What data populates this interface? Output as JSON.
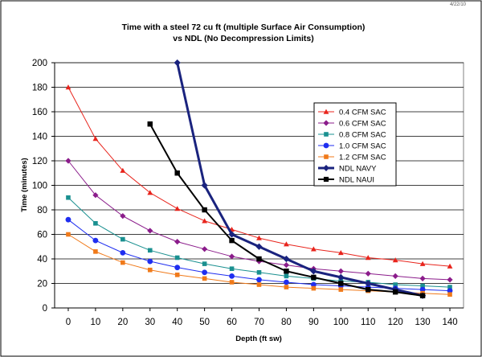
{
  "corner_note": "4/22/10",
  "chart_data": {
    "type": "line",
    "title": "Time with a steel 72 cu ft (multiple Surface Air Consumption)",
    "subtitle": "vs NDL (No Decompression Limits)",
    "xlabel": "Depth (ft sw)",
    "ylabel": "Time (minutes)",
    "xlim": [
      -5,
      145
    ],
    "ylim": [
      0,
      200
    ],
    "xticks": [
      0,
      10,
      20,
      30,
      40,
      50,
      60,
      70,
      80,
      90,
      100,
      110,
      120,
      130,
      140
    ],
    "yticks": [
      0,
      20,
      40,
      60,
      80,
      100,
      120,
      140,
      160,
      180,
      200
    ],
    "grid": "horizontal",
    "legend_position": "right",
    "series": [
      {
        "name": "0.4 CFM SAC",
        "color": "#e8241c",
        "marker": "triangle",
        "width": 1,
        "x": [
          0,
          10,
          20,
          30,
          40,
          50,
          60,
          70,
          80,
          90,
          100,
          110,
          120,
          130,
          140
        ],
        "y": [
          180,
          138,
          112,
          94,
          81,
          71,
          64,
          57,
          52,
          48,
          45,
          41,
          39,
          36,
          34
        ]
      },
      {
        "name": "0.6 CFM SAC",
        "color": "#8b1c8b",
        "marker": "diamond",
        "width": 1,
        "x": [
          0,
          10,
          20,
          30,
          40,
          50,
          60,
          70,
          80,
          90,
          100,
          110,
          120,
          130,
          140
        ],
        "y": [
          120,
          92,
          75,
          63,
          54,
          48,
          42,
          38,
          35,
          32,
          30,
          28,
          26,
          24,
          23
        ]
      },
      {
        "name": "0.8 CFM SAC",
        "color": "#1a9090",
        "marker": "square",
        "width": 1,
        "x": [
          0,
          10,
          20,
          30,
          40,
          50,
          60,
          70,
          80,
          90,
          100,
          110,
          120,
          130,
          140
        ],
        "y": [
          90,
          69,
          56,
          47,
          41,
          36,
          32,
          29,
          26,
          24,
          22,
          21,
          19,
          18,
          17
        ]
      },
      {
        "name": "1.0 CFM SAC",
        "color": "#1f2ef0",
        "marker": "circle",
        "width": 1,
        "x": [
          0,
          10,
          20,
          30,
          40,
          50,
          60,
          70,
          80,
          90,
          100,
          110,
          120,
          130,
          140
        ],
        "y": [
          72,
          55,
          45,
          38,
          33,
          29,
          26,
          23,
          21,
          19,
          18,
          17,
          16,
          15,
          14
        ]
      },
      {
        "name": "1.2 CFM SAC",
        "color": "#f07a1a",
        "marker": "square",
        "width": 1,
        "x": [
          0,
          10,
          20,
          30,
          40,
          50,
          60,
          70,
          80,
          90,
          100,
          110,
          120,
          130,
          140
        ],
        "y": [
          60,
          46,
          37,
          31,
          27,
          24,
          21,
          19,
          17,
          16,
          15,
          14,
          13,
          12,
          11
        ]
      },
      {
        "name": "NDL NAVY",
        "color": "#1a237e",
        "marker": "diamond",
        "width": 3,
        "x": [
          40,
          50,
          60,
          70,
          80,
          90,
          100,
          110,
          120,
          130
        ],
        "y": [
          200,
          100,
          60,
          50,
          40,
          30,
          25,
          20,
          15,
          10
        ]
      },
      {
        "name": "NDL NAUI",
        "color": "#000000",
        "marker": "square",
        "width": 2,
        "x": [
          30,
          40,
          50,
          60,
          70,
          80,
          90,
          100,
          110,
          120,
          130
        ],
        "y": [
          150,
          110,
          80,
          55,
          40,
          30,
          25,
          20,
          15,
          13,
          10
        ]
      }
    ]
  }
}
